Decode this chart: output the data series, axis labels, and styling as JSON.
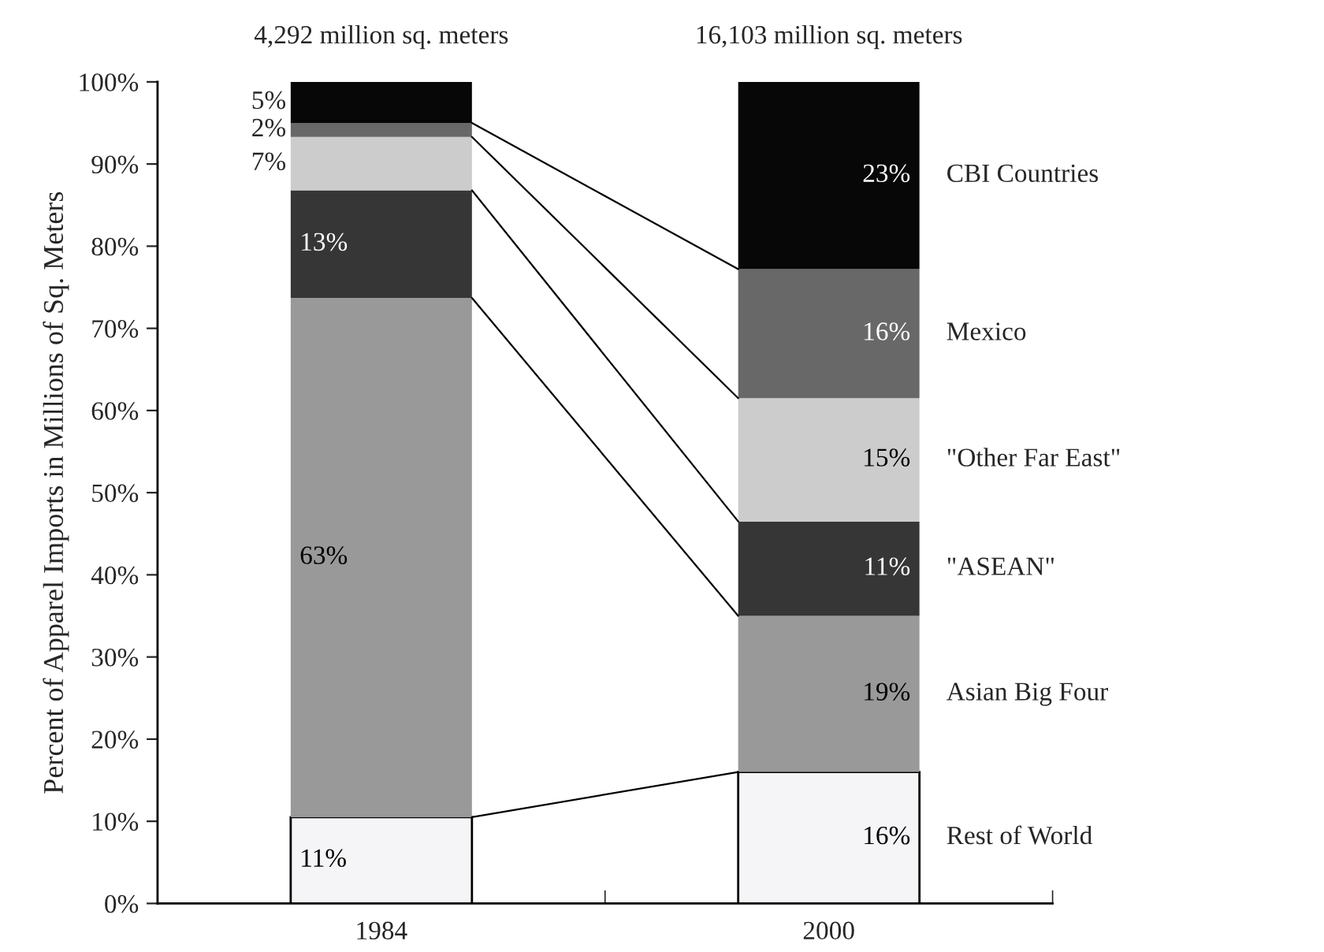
{
  "chart_data": {
    "type": "bar",
    "stacked": true,
    "categories": [
      "1984",
      "2000"
    ],
    "ylabel": "Percent of Apparel Imports in Millions of Sq. Meters",
    "ylim": [
      0,
      100
    ],
    "yticks": [
      {
        "value": 0,
        "label": "0%"
      },
      {
        "value": 10,
        "label": "10%"
      },
      {
        "value": 20,
        "label": "20%"
      },
      {
        "value": 30,
        "label": "30%"
      },
      {
        "value": 40,
        "label": "40%"
      },
      {
        "value": 50,
        "label": "50%"
      },
      {
        "value": 60,
        "label": "60%"
      },
      {
        "value": 70,
        "label": "70%"
      },
      {
        "value": 80,
        "label": "80%"
      },
      {
        "value": 90,
        "label": "90%"
      },
      {
        "value": 100,
        "label": "100%"
      }
    ],
    "annotations": [
      "4,292 million sq. meters",
      "16,103 million sq. meters"
    ],
    "series": [
      {
        "name": "Rest of World",
        "color": "#f5f5f7",
        "values": [
          10.5,
          16
        ],
        "value_labels": [
          "11%",
          "16%"
        ]
      },
      {
        "name": "Asian Big Four",
        "color": "#999999",
        "values": [
          63.2,
          19
        ],
        "value_labels": [
          "63%",
          "19%"
        ]
      },
      {
        "name": "\"ASEAN\"",
        "color": "#363636",
        "values": [
          13.1,
          11.5
        ],
        "value_labels": [
          "13%",
          "11%"
        ]
      },
      {
        "name": "\"Other Far East\"",
        "color": "#cccccc",
        "values": [
          6.5,
          15
        ],
        "value_labels": [
          "7%",
          "15%"
        ]
      },
      {
        "name": "Mexico",
        "color": "#686868",
        "values": [
          1.7,
          15.7
        ],
        "value_labels": [
          "2%",
          "16%"
        ]
      },
      {
        "name": "CBI Countries",
        "color": "#070707",
        "values": [
          5,
          22.8
        ],
        "value_labels": [
          "5%",
          "23%"
        ]
      }
    ],
    "grid": false,
    "legend": false
  }
}
